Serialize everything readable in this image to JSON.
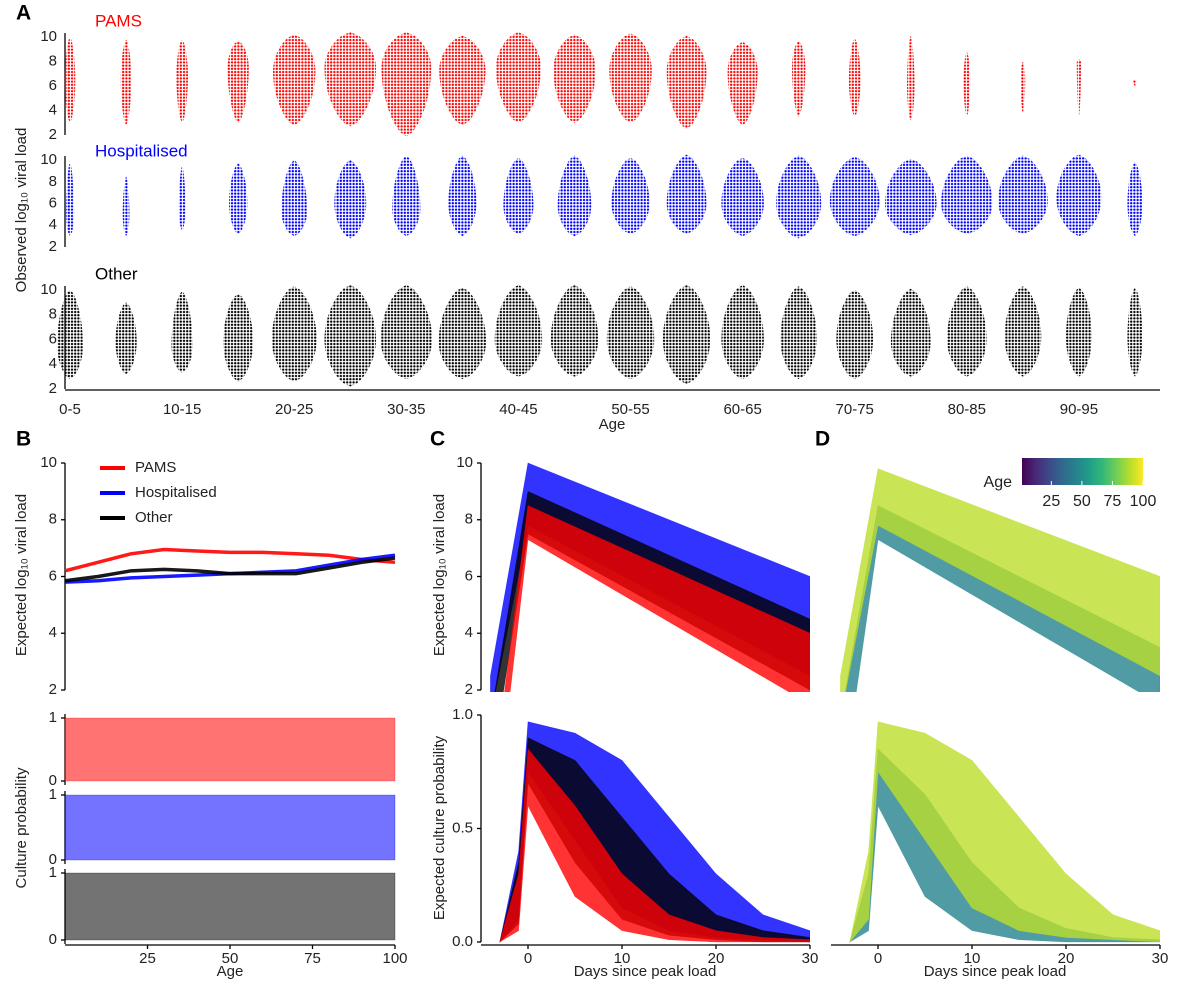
{
  "chart_data": [
    {
      "type": "swarm",
      "panel": "A",
      "x_label": "Age",
      "y_label": "Observed log₁₀ viral load",
      "categories": [
        "0-5",
        null,
        "10-15",
        null,
        "20-25",
        null,
        "30-35",
        null,
        "40-45",
        null,
        "50-55",
        null,
        "60-65",
        null,
        "70-75",
        null,
        "80-85",
        null,
        "90-95",
        null
      ],
      "ylim": [
        1.8,
        10.5
      ],
      "yticks": [
        2,
        4,
        6,
        8,
        10
      ],
      "series": [
        {
          "name": "PAMS",
          "color": "#ff0000",
          "n": [
            50,
            50,
            60,
            200,
            800,
            1300,
            1100,
            950,
            900,
            800,
            800,
            700,
            400,
            80,
            60,
            25,
            20,
            10,
            8,
            5
          ],
          "min": [
            3,
            2.8,
            3,
            3,
            2.8,
            2.7,
            1.9,
            2.8,
            3,
            3,
            3,
            2.5,
            2.8,
            3.5,
            3.5,
            3.2,
            3.5,
            3.8,
            3.5,
            6
          ],
          "median": [
            6.5,
            6.5,
            6.8,
            7.5,
            7.2,
            7.5,
            7.5,
            7.3,
            7.5,
            7.3,
            7.3,
            7.2,
            7.2,
            7.5,
            6.5,
            6,
            6.5,
            6.5,
            8,
            6.5
          ],
          "max": [
            10,
            9.8,
            9.8,
            9.7,
            10.2,
            10.4,
            10.4,
            10.1,
            10.4,
            10.2,
            10.3,
            10.1,
            9.6,
            9.7,
            9.9,
            10.1,
            8.8,
            8,
            8.2,
            6.5
          ]
        },
        {
          "name": "Hospitalised",
          "color": "#0000ff",
          "n": [
            30,
            20,
            20,
            150,
            300,
            450,
            350,
            350,
            400,
            500,
            650,
            700,
            800,
            900,
            1100,
            1400,
            1500,
            1100,
            900,
            100
          ],
          "min": [
            3,
            3,
            3.5,
            3.2,
            3,
            2.8,
            3,
            3,
            3.2,
            3,
            3.2,
            3.2,
            3,
            2.8,
            3,
            3.1,
            3.2,
            3.2,
            3,
            3
          ],
          "median": [
            5,
            5,
            5.5,
            6,
            5.3,
            6,
            5.5,
            6,
            5.8,
            5.8,
            6,
            6,
            6,
            6,
            6.2,
            6,
            6,
            6.2,
            6.5,
            6
          ],
          "max": [
            9.8,
            8.5,
            9.5,
            9.7,
            10,
            10,
            10.4,
            10.4,
            10.2,
            10.4,
            10.2,
            10.5,
            10.2,
            10.4,
            10.3,
            10.1,
            10.4,
            10.4,
            10.5,
            9.8
          ]
        },
        {
          "name": "Other",
          "color": "#000000",
          "n": [
            300,
            200,
            200,
            400,
            900,
            1300,
            1200,
            1000,
            1000,
            1000,
            1000,
            1000,
            800,
            600,
            600,
            700,
            700,
            600,
            300,
            100
          ],
          "min": [
            2.8,
            3.2,
            3.3,
            2.6,
            2.6,
            2.2,
            2.8,
            2.8,
            3,
            3,
            2.8,
            2.4,
            2.8,
            2.8,
            2.8,
            3,
            3,
            3,
            3,
            3
          ],
          "median": [
            5.5,
            5.8,
            5.5,
            5.8,
            6,
            6,
            6,
            5.8,
            6,
            6,
            6,
            6,
            6,
            6,
            6,
            5.8,
            6,
            6.2,
            6.2,
            6.2
          ],
          "max": [
            10,
            9,
            9.9,
            9.7,
            10.3,
            10.4,
            10.4,
            10.2,
            10.4,
            10.4,
            10.3,
            10.4,
            10.4,
            10.3,
            10,
            10.1,
            10.3,
            10.3,
            10.2,
            10.2
          ]
        }
      ]
    },
    {
      "type": "line",
      "panel": "B",
      "y_label": "Expected log₁₀ viral load",
      "legend": "top-left",
      "x": [
        0,
        10,
        20,
        30,
        40,
        50,
        60,
        70,
        80,
        90,
        100
      ],
      "xlim": [
        0,
        100
      ],
      "ylim": [
        2,
        10
      ],
      "yticks": [
        2,
        4,
        6,
        8,
        10
      ],
      "series": [
        {
          "name": "PAMS",
          "color": "#ff0000",
          "values": [
            6.2,
            6.5,
            6.8,
            6.95,
            6.9,
            6.85,
            6.85,
            6.8,
            6.75,
            6.6,
            6.5
          ]
        },
        {
          "name": "Hospitalised",
          "color": "#0000ff",
          "values": [
            5.8,
            5.85,
            5.95,
            6.0,
            6.05,
            6.1,
            6.15,
            6.2,
            6.4,
            6.6,
            6.75
          ]
        },
        {
          "name": "Other",
          "color": "#000000",
          "values": [
            5.85,
            6.0,
            6.2,
            6.25,
            6.2,
            6.1,
            6.1,
            6.1,
            6.3,
            6.5,
            6.65
          ]
        }
      ]
    },
    {
      "type": "band-facets",
      "y_label": "Culture probability",
      "x_label": "Age",
      "x": [
        0,
        50,
        100
      ],
      "xlim": [
        0,
        100
      ],
      "xticks": [
        25,
        50,
        75,
        100
      ],
      "ylim": [
        0,
        1
      ],
      "yticks": [
        0,
        1
      ],
      "series": [
        {
          "color": "#ff0000",
          "low": [
            0,
            0,
            0
          ],
          "high": [
            1,
            1,
            1
          ]
        },
        {
          "color": "#0000ff",
          "low": [
            0,
            0,
            0
          ],
          "high": [
            1,
            1,
            1
          ]
        },
        {
          "color": "#000000",
          "low": [
            0,
            0,
            0
          ],
          "high": [
            1,
            1,
            1
          ]
        }
      ]
    },
    {
      "type": "band",
      "panel": "C",
      "y_label": "Expected log₁₀ viral load",
      "x": [
        -4,
        0,
        30
      ],
      "xlim": [
        -5,
        30
      ],
      "ylim": [
        2,
        10
      ],
      "yticks": [
        2,
        4,
        6,
        8,
        10
      ],
      "series": [
        {
          "color": "#0000ff",
          "low": [
            1,
            7.8,
            2.5
          ],
          "high": [
            2.5,
            10,
            6
          ]
        },
        {
          "color": "#000000",
          "low": [
            -1,
            7.5,
            2
          ],
          "high": [
            1,
            9,
            4.5
          ]
        },
        {
          "color": "#ff0000",
          "low": [
            -4,
            7.3,
            1.5
          ],
          "high": [
            -2,
            8.5,
            4
          ]
        }
      ]
    },
    {
      "type": "band",
      "y_label": "Expected culture probability",
      "x_label": "Days since peak load",
      "x": [
        -3,
        -1,
        0,
        5,
        10,
        15,
        20,
        25,
        30
      ],
      "xlim": [
        -5,
        30
      ],
      "xticks": [
        0,
        10,
        20,
        30
      ],
      "ylim": [
        0,
        1
      ],
      "yticks": [
        {
          "value": 0,
          "label": "0.0"
        },
        {
          "value": 0.5,
          "label": "0.5"
        },
        {
          "value": 1,
          "label": "1.0"
        }
      ],
      "series": [
        {
          "color": "#0000ff",
          "low": [
            0,
            0.1,
            0.75,
            0.45,
            0.15,
            0.05,
            0.02,
            0.01,
            0
          ],
          "high": [
            0,
            0.4,
            0.97,
            0.92,
            0.8,
            0.55,
            0.3,
            0.12,
            0.05
          ]
        },
        {
          "color": "#000000",
          "low": [
            0,
            0.08,
            0.7,
            0.35,
            0.1,
            0.03,
            0.01,
            0,
            0
          ],
          "high": [
            0,
            0.35,
            0.9,
            0.8,
            0.55,
            0.3,
            0.12,
            0.05,
            0.02
          ]
        },
        {
          "color": "#ff0000",
          "low": [
            0,
            0.05,
            0.6,
            0.2,
            0.05,
            0.01,
            0,
            0,
            0
          ],
          "high": [
            0,
            0.3,
            0.85,
            0.6,
            0.3,
            0.12,
            0.05,
            0.02,
            0.01
          ]
        }
      ]
    },
    {
      "type": "band",
      "panel": "D",
      "x": [
        -4,
        0,
        30
      ],
      "xlim": [
        -5,
        30
      ],
      "ylim": [
        2,
        10
      ],
      "colorbar": {
        "title": "Age",
        "lim": [
          1,
          100
        ],
        "ticks": [
          25,
          50,
          75,
          100
        ]
      },
      "series": [
        {
          "age": 45,
          "low": [
            -2,
            7.3,
            1.5
          ],
          "high": [
            1,
            8.5,
            3.5
          ]
        },
        {
          "age": 90,
          "low": [
            1,
            7.8,
            2.5
          ],
          "high": [
            2.5,
            9.8,
            6
          ]
        }
      ]
    },
    {
      "type": "band",
      "x_label": "Days since peak load",
      "x": [
        -3,
        -1,
        0,
        5,
        10,
        15,
        20,
        25,
        30
      ],
      "xlim": [
        -5,
        30
      ],
      "xticks": [
        0,
        10,
        20,
        30
      ],
      "ylim": [
        0,
        1
      ],
      "series": [
        {
          "age": 45,
          "low": [
            0,
            0.05,
            0.6,
            0.2,
            0.05,
            0.01,
            0,
            0,
            0
          ],
          "high": [
            0,
            0.3,
            0.85,
            0.65,
            0.35,
            0.15,
            0.06,
            0.02,
            0.01
          ]
        },
        {
          "age": 90,
          "low": [
            0,
            0.1,
            0.75,
            0.45,
            0.15,
            0.05,
            0.02,
            0.01,
            0
          ],
          "high": [
            0,
            0.4,
            0.97,
            0.92,
            0.8,
            0.55,
            0.3,
            0.12,
            0.05
          ]
        }
      ]
    }
  ]
}
